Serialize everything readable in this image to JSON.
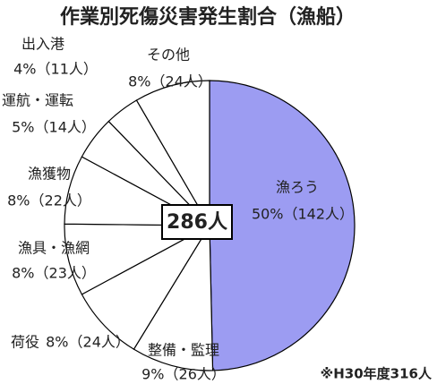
{
  "chart_data": {
    "type": "pie",
    "title": "作業別死傷災害発生割合（漁船）",
    "categories": [
      "漁ろう",
      "整備・監理",
      "荷役",
      "漁具・漁網",
      "漁獲物",
      "運航・運転",
      "出入港",
      "その他"
    ],
    "values": [
      142,
      26,
      24,
      23,
      22,
      14,
      11,
      24
    ],
    "value_labels": [
      "50%（142人）",
      "9%（26人）",
      "8%（24人）",
      "8%（23人）",
      "8%（22人）",
      "5%（14人）",
      "4%（11人）",
      "8%（24人）"
    ],
    "colors": [
      "#9c9cf2",
      "#ffffff",
      "#ffffff",
      "#ffffff",
      "#ffffff",
      "#ffffff",
      "#ffffff",
      "#ffffff"
    ],
    "center_label": "286人",
    "note": "※H30年度316人"
  }
}
